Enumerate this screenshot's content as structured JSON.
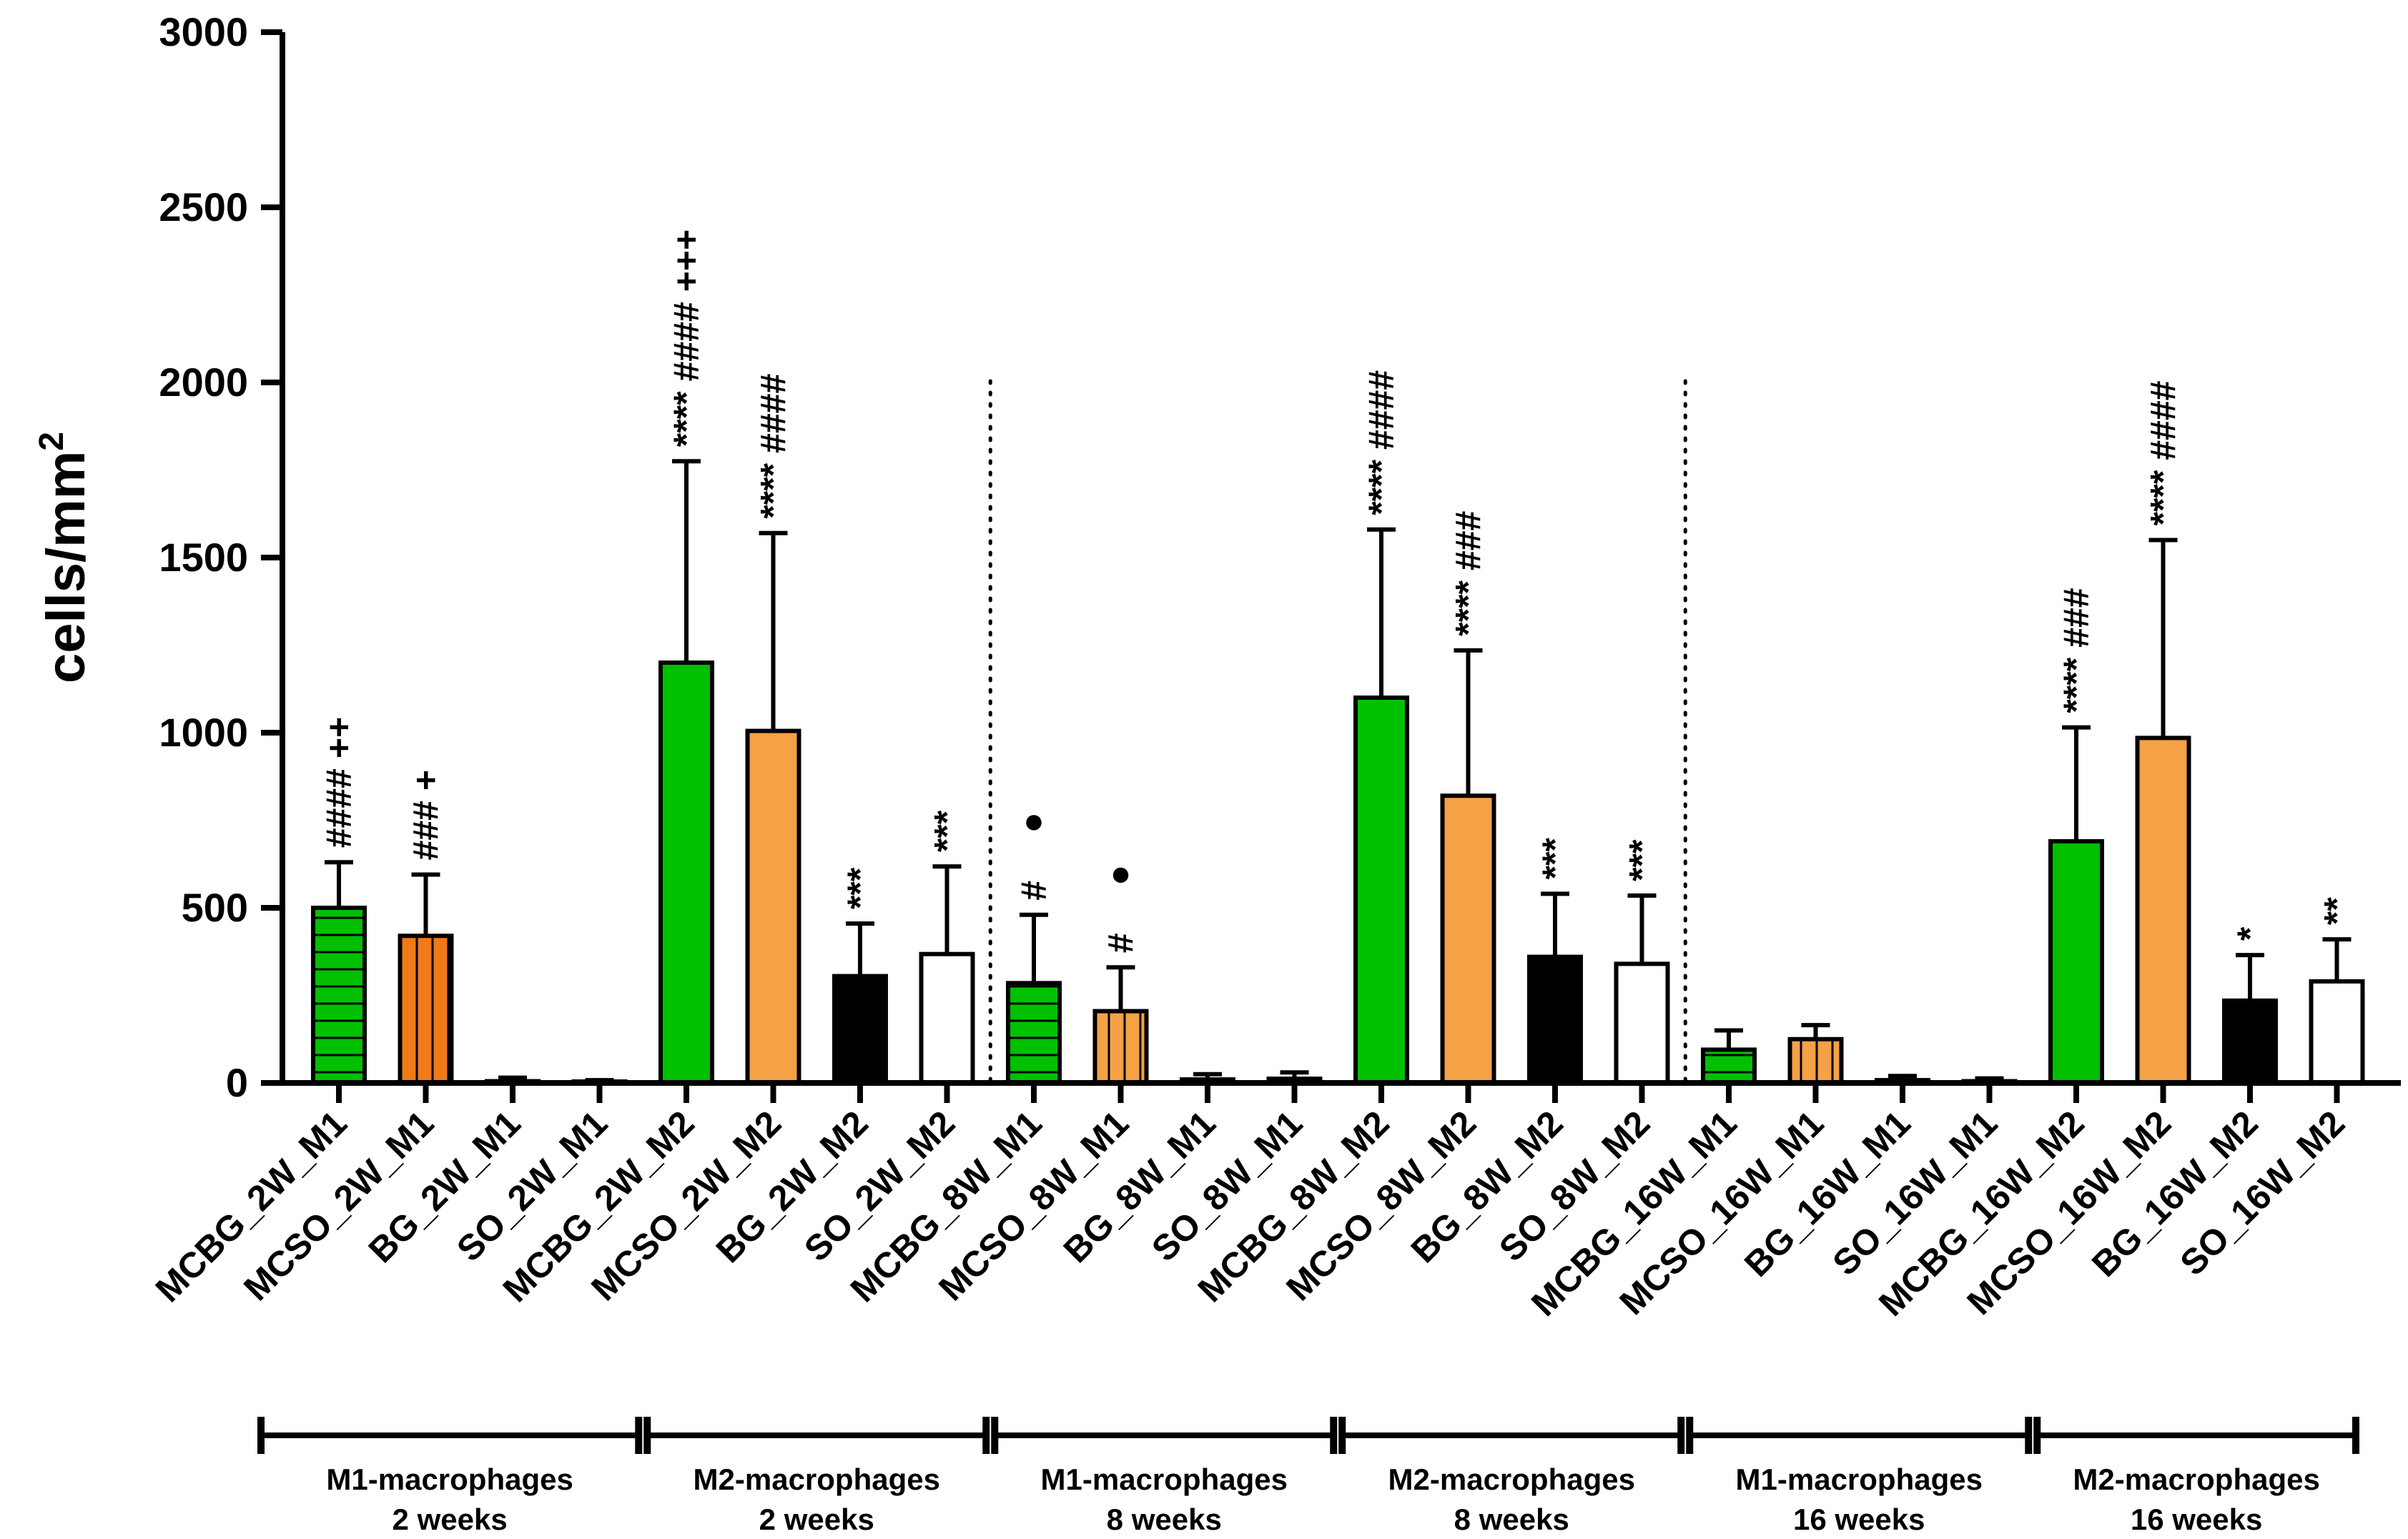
{
  "chart_data": {
    "type": "bar",
    "title": "",
    "xlabel": "",
    "ylabel": "cells/mm",
    "ylabel_superscript": "2",
    "ylim": [
      0,
      3000
    ],
    "yticks": [
      "0",
      "500",
      "1000",
      "1500",
      "2000",
      "2500",
      "3000"
    ],
    "ytick_values": [
      0,
      500,
      1000,
      1500,
      2000,
      2500,
      3000
    ],
    "colors": {
      "green": "#00c000",
      "orange_dark": "#f07a1a",
      "orange": "#f5a145",
      "black": "#000000",
      "white": "#ffffff"
    },
    "categories": [
      "MCBG_2W_M1",
      "MCSO_2W_M1",
      "BG_2W_M1",
      "SO_2W_M1",
      "MCBG_2W_M2",
      "MCSO_2W_M2",
      "BG_2W_M2",
      "SO_2W_M2",
      "MCBG_8W_M1",
      "MCSO_8W_M1",
      "BG_8W_M1",
      "SO_8W_M1",
      "MCBG_8W_M2",
      "MCSO_8W_M2",
      "BG_8W_M2",
      "SO_8W_M2",
      "MCBG_16W_M1",
      "MCSO_16W_M1",
      "BG_16W_M1",
      "SO_16W_M1",
      "MCBG_16W_M2",
      "MCSO_16W_M2",
      "BG_16W_M2",
      "SO_16W_M2"
    ],
    "values": [
      500,
      420,
      5,
      3,
      1200,
      1005,
      305,
      368,
      285,
      205,
      10,
      12,
      1100,
      820,
      360,
      340,
      95,
      125,
      8,
      5,
      690,
      985,
      235,
      290
    ],
    "errors": [
      130,
      175,
      10,
      5,
      575,
      565,
      150,
      250,
      195,
      125,
      15,
      18,
      480,
      415,
      180,
      195,
      55,
      40,
      12,
      8,
      325,
      565,
      130,
      120
    ],
    "fills": [
      "green",
      "orange_dark",
      "white",
      "white",
      "green",
      "orange",
      "black",
      "white",
      "green",
      "orange",
      "white",
      "white",
      "green",
      "orange",
      "black",
      "white",
      "green",
      "orange",
      "white",
      "white",
      "green",
      "orange",
      "black",
      "white"
    ],
    "patterns": [
      "hstripe",
      "vstripe",
      "none",
      "none",
      "none",
      "none",
      "none",
      "none",
      "hstripe",
      "vstripe",
      "none",
      "none",
      "none",
      "none",
      "none",
      "none",
      "hstripe",
      "vstripe",
      "none",
      "none",
      "none",
      "none",
      "none",
      "none"
    ],
    "annotations": [
      {
        "index": 0,
        "lines": [
          "####",
          "++"
        ]
      },
      {
        "index": 1,
        "lines": [
          "###",
          "+"
        ]
      },
      {
        "index": 4,
        "lines": [
          "****",
          "####",
          "+++"
        ]
      },
      {
        "index": 5,
        "lines": [
          "****",
          "####"
        ]
      },
      {
        "index": 6,
        "lines": [
          "***"
        ]
      },
      {
        "index": 7,
        "lines": [
          "***"
        ]
      },
      {
        "index": 8,
        "lines": [
          "#",
          "●"
        ]
      },
      {
        "index": 9,
        "lines": [
          "#",
          "●"
        ]
      },
      {
        "index": 12,
        "lines": [
          "****",
          "####"
        ]
      },
      {
        "index": 13,
        "lines": [
          "****",
          "###"
        ]
      },
      {
        "index": 14,
        "lines": [
          "***"
        ]
      },
      {
        "index": 15,
        "lines": [
          "***"
        ]
      },
      {
        "index": 20,
        "lines": [
          "****",
          "###"
        ]
      },
      {
        "index": 21,
        "lines": [
          "****",
          "####"
        ]
      },
      {
        "index": 22,
        "lines": [
          "*"
        ]
      },
      {
        "index": 23,
        "lines": [
          "**"
        ]
      }
    ],
    "groups": [
      {
        "label_line1": "M1-macrophages",
        "label_line2": "2 weeks",
        "start": 0,
        "end": 3
      },
      {
        "label_line1": "M2-macrophages",
        "label_line2": "2 weeks",
        "start": 4,
        "end": 7
      },
      {
        "label_line1": "M1-macrophages",
        "label_line2": "8 weeks",
        "start": 8,
        "end": 11
      },
      {
        "label_line1": "M2-macrophages",
        "label_line2": "8 weeks",
        "start": 12,
        "end": 15
      },
      {
        "label_line1": "M1-macrophages",
        "label_line2": "16 weeks",
        "start": 16,
        "end": 19
      },
      {
        "label_line1": "M2-macrophages",
        "label_line2": "16 weeks",
        "start": 20,
        "end": 23
      }
    ],
    "dotted_separators_after": [
      7,
      15
    ]
  }
}
